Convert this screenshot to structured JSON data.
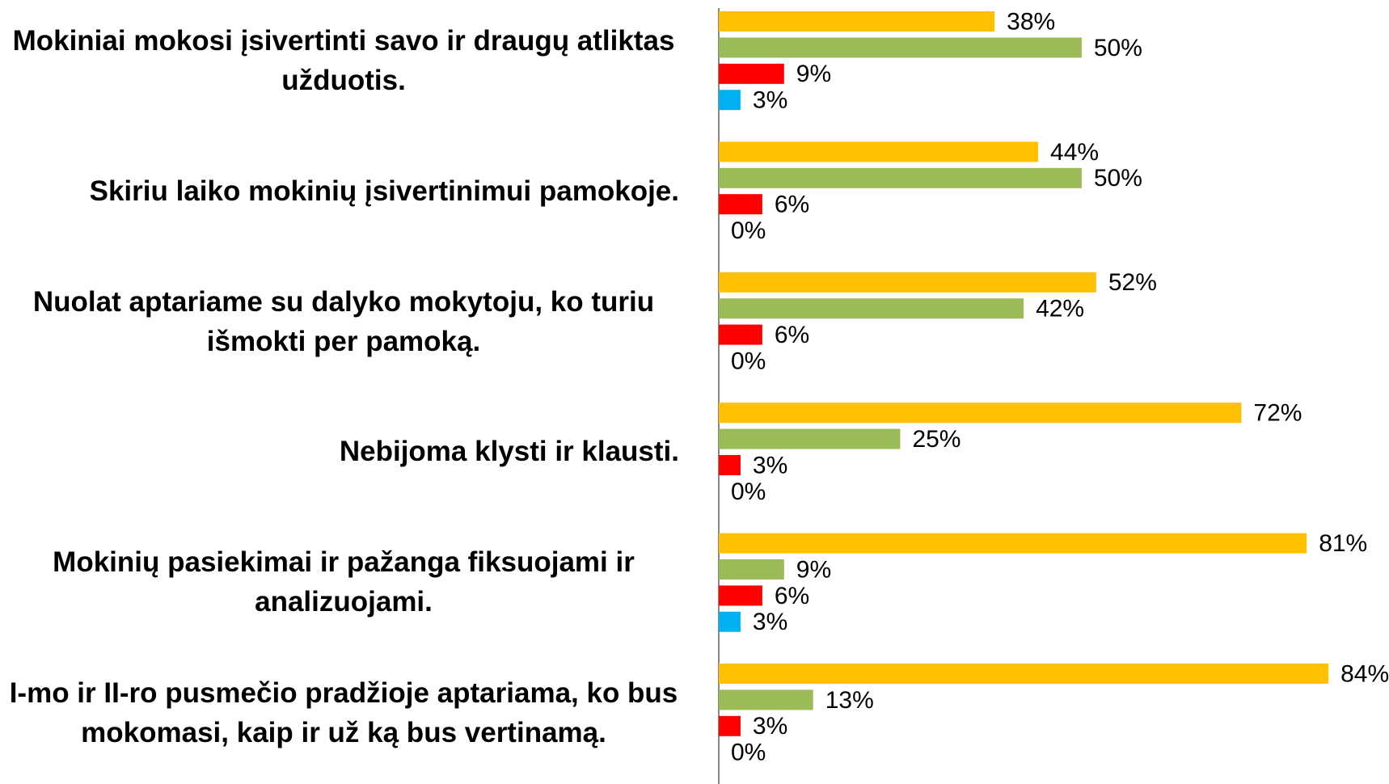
{
  "chart_data": {
    "type": "bar",
    "orientation": "horizontal",
    "categories": [
      "Mokiniai mokosi įsivertinti savo ir draugų atliktas užduotis.",
      "Skiriu laiko mokinių įsivertinimui pamokoje.",
      "Nuolat aptariame su dalyko mokytoju, ko turiu išmokti per pamoką.",
      "Nebijoma klysti ir klausti.",
      "Mokinių pasiekimai ir pažanga fiksuojami ir analizuojami.",
      "I-mo ir II-ro pusmečio pradžioje aptariama, ko bus mokomasi, kaip ir už ką bus vertinamą."
    ],
    "series": [
      {
        "color": "#FFC000",
        "values": [
          38,
          44,
          52,
          72,
          81,
          84
        ],
        "value_labels": [
          "38%",
          "44%",
          "52%",
          "72%",
          "81%",
          "84%"
        ]
      },
      {
        "color": "#9BBB59",
        "values": [
          50,
          50,
          42,
          25,
          9,
          13
        ],
        "value_labels": [
          "50%",
          "50%",
          "42%",
          "25%",
          "9%",
          "13%"
        ]
      },
      {
        "color": "#FF0000",
        "values": [
          9,
          6,
          6,
          3,
          6,
          3
        ],
        "value_labels": [
          "9%",
          "6%",
          "6%",
          "3%",
          "6%",
          "3%"
        ]
      },
      {
        "color": "#00B0F0",
        "values": [
          3,
          0,
          0,
          0,
          3,
          0
        ],
        "value_labels": [
          "3%",
          "0%",
          "0%",
          "0%",
          "3%",
          "0%"
        ]
      }
    ],
    "xlim": [
      0,
      90
    ]
  }
}
